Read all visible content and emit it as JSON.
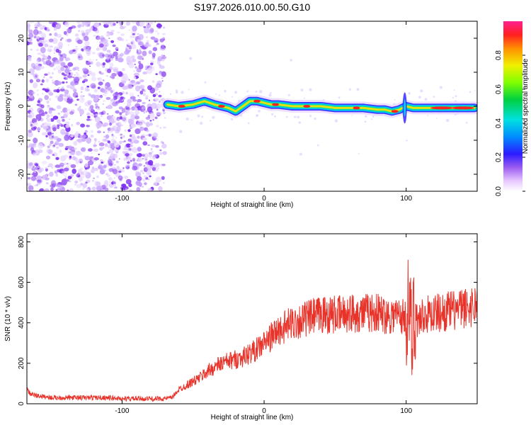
{
  "title": "S197.2026.010.00.50.G10",
  "chart_data": [
    {
      "type": "heatmap",
      "xlabel": "Height of straight line (km)",
      "ylabel": "Frequency (Hz)",
      "xlim": [
        -167,
        150
      ],
      "ylim": [
        -25,
        25
      ],
      "xticks": [
        -100,
        0,
        100
      ],
      "yticks": [
        -20,
        -10,
        0,
        10,
        20
      ],
      "colorbar": {
        "label": "Normalized spectral amplitude",
        "range": [
          0,
          1
        ],
        "ticks": [
          "0.0",
          "0.2",
          "0.4",
          "0.6",
          "0.8"
        ]
      },
      "ridge": {
        "x": [
          -68,
          -60,
          -50,
          -42,
          -35,
          -30,
          -25,
          -20,
          -15,
          -10,
          -5,
          0,
          5,
          10,
          20,
          30,
          40,
          50,
          60,
          70,
          80,
          85,
          90,
          95,
          100,
          105,
          110,
          120,
          130,
          140,
          148
        ],
        "freq": [
          0.5,
          0,
          0.5,
          1.5,
          0.5,
          0,
          -0.5,
          -1.5,
          0,
          1.5,
          1.5,
          1,
          0.5,
          0.5,
          0,
          0,
          0,
          -0.5,
          -0.5,
          -0.5,
          -1,
          -1,
          -1.5,
          -1,
          0,
          -0.5,
          -0.5,
          -0.5,
          -0.5,
          -0.5,
          -0.5
        ]
      }
    },
    {
      "type": "line",
      "xlabel": "Height of straight line (km)",
      "ylabel": "SNR (10 * v/v)",
      "xlim": [
        -167,
        150
      ],
      "ylim": [
        0,
        840
      ],
      "xticks": [
        -100,
        0,
        100
      ],
      "yticks": [
        0,
        200,
        400,
        600,
        800
      ],
      "series": [
        {
          "name": "SNR",
          "color": "#e8332a",
          "x": [
            -167,
            -165,
            -160,
            -150,
            -140,
            -130,
            -120,
            -110,
            -100,
            -90,
            -80,
            -70,
            -65,
            -60,
            -55,
            -50,
            -45,
            -40,
            -35,
            -30,
            -25,
            -20,
            -15,
            -10,
            -5,
            0,
            5,
            10,
            15,
            20,
            25,
            30,
            35,
            40,
            45,
            50,
            55,
            60,
            65,
            70,
            75,
            80,
            85,
            90,
            95,
            100,
            102,
            104,
            106,
            108,
            110,
            115,
            120,
            125,
            130,
            135,
            140,
            145,
            150
          ],
          "y": [
            80,
            50,
            40,
            30,
            30,
            30,
            30,
            30,
            25,
            25,
            25,
            25,
            30,
            70,
            90,
            110,
            130,
            160,
            180,
            200,
            210,
            220,
            230,
            250,
            270,
            300,
            330,
            360,
            380,
            400,
            410,
            420,
            430,
            440,
            440,
            440,
            440,
            450,
            450,
            450,
            450,
            450,
            440,
            440,
            440,
            420,
            500,
            300,
            480,
            400,
            430,
            440,
            450,
            450,
            460,
            460,
            470,
            480,
            490
          ]
        }
      ]
    }
  ]
}
